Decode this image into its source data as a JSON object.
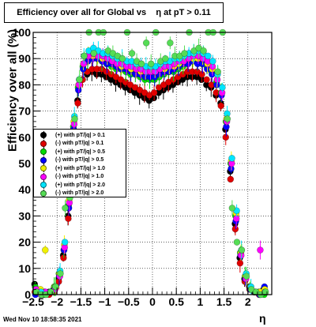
{
  "title": "Efficiency over all for Global vs    η at pT > 0.11",
  "footer_date": "Wed Nov 10 18:58:35 2021",
  "chart_data": {
    "type": "scatter",
    "title": "Efficiency over all for Global vs    η at pT > 0.11",
    "xlabel": "η",
    "ylabel": "Efficiency over all (%)",
    "xlim": [
      -2.5,
      2.5
    ],
    "ylim": [
      0,
      100
    ],
    "x_ticks": [
      "-2.5",
      "-2",
      "-1.5",
      "-1",
      "-0.5",
      "0",
      "0.5",
      "1",
      "1.5",
      "2"
    ],
    "y_ticks": [
      "0",
      "10",
      "20",
      "30",
      "40",
      "50",
      "60",
      "70",
      "80",
      "90",
      "100"
    ],
    "grid": true,
    "legend_position": "left-middle",
    "x": [
      -2.45,
      -2.35,
      -2.25,
      -2.15,
      -2.05,
      -1.95,
      -1.85,
      -1.75,
      -1.65,
      -1.55,
      -1.45,
      -1.35,
      -1.25,
      -1.15,
      -1.05,
      -0.95,
      -0.85,
      -0.75,
      -0.65,
      -0.55,
      -0.45,
      -0.35,
      -0.25,
      -0.15,
      -0.05,
      0.05,
      0.15,
      0.25,
      0.35,
      0.45,
      0.55,
      0.65,
      0.75,
      0.85,
      0.95,
      1.05,
      1.15,
      1.25,
      1.35,
      1.45,
      1.55,
      1.65,
      1.75,
      1.85,
      1.95,
      2.05,
      2.15,
      2.25,
      2.35
    ],
    "series": [
      {
        "name": "(+) with pT/|q| > 0.1",
        "color": "#000000",
        "values": [
          4,
          1,
          0,
          1,
          2,
          6,
          15,
          30,
          60,
          74,
          82,
          84,
          85,
          84,
          84,
          83,
          82,
          81,
          80,
          79,
          78,
          77,
          76,
          75,
          74,
          75,
          77,
          78,
          79,
          80,
          81,
          82,
          83,
          83,
          83,
          82,
          80,
          79,
          76,
          73,
          63,
          47,
          27,
          14,
          6,
          3,
          1,
          1,
          2
        ]
      },
      {
        "name": "(-) with pT/|q| > 0.1",
        "color": "#e00000",
        "values": [
          1,
          1,
          1,
          0,
          1,
          5,
          14,
          29,
          59,
          73,
          82,
          85,
          86,
          86,
          86,
          85,
          84,
          83,
          82,
          81,
          80,
          79,
          78,
          77,
          76,
          77,
          79,
          80,
          81,
          82,
          83,
          84,
          85,
          85,
          85,
          84,
          82,
          80,
          77,
          72,
          60,
          44,
          25,
          12,
          5,
          2,
          1,
          0,
          1
        ]
      },
      {
        "name": "(+) with pT/|q| > 0.5",
        "color": "#00dd00",
        "values": [
          3,
          1,
          0,
          1,
          3,
          8,
          17,
          34,
          64,
          79,
          87,
          89,
          90,
          90,
          89,
          88,
          87,
          86,
          86,
          85,
          84,
          84,
          83,
          82,
          82,
          82,
          83,
          84,
          85,
          85,
          86,
          87,
          88,
          89,
          89,
          88,
          87,
          85,
          81,
          77,
          66,
          50,
          30,
          16,
          7,
          3,
          1,
          1,
          0
        ]
      },
      {
        "name": "(-) with pT/|q| > 0.5",
        "color": "#0000ff",
        "values": [
          0,
          1,
          1,
          1,
          2,
          7,
          17,
          33,
          63,
          78,
          86,
          89,
          90,
          90,
          89,
          88,
          88,
          87,
          86,
          86,
          85,
          84,
          84,
          83,
          83,
          83,
          84,
          85,
          85,
          86,
          87,
          88,
          88,
          89,
          88,
          88,
          86,
          84,
          80,
          76,
          64,
          48,
          28,
          15,
          6,
          2,
          1,
          0,
          3
        ]
      },
      {
        "name": "(+) with pT/|q| > 1.0",
        "color": "#f0f000",
        "values": [
          1,
          2,
          17,
          1,
          3,
          8,
          19,
          36,
          66,
          80,
          88,
          91,
          91,
          91,
          90,
          90,
          89,
          88,
          87,
          87,
          86,
          86,
          85,
          85,
          85,
          85,
          86,
          86,
          87,
          87,
          88,
          89,
          90,
          90,
          90,
          90,
          88,
          86,
          82,
          77,
          67,
          51,
          31,
          16,
          7,
          3,
          1,
          1,
          2
        ]
      },
      {
        "name": "(-) with pT/|q| > 1.0",
        "color": "#ff00ff",
        "values": [
          2,
          0,
          1,
          1,
          2,
          7,
          18,
          35,
          65,
          80,
          88,
          91,
          92,
          91,
          91,
          90,
          89,
          88,
          88,
          87,
          87,
          86,
          86,
          85,
          85,
          85,
          86,
          87,
          87,
          88,
          89,
          89,
          90,
          91,
          91,
          90,
          89,
          87,
          82,
          77,
          66,
          50,
          29,
          15,
          6,
          3,
          1,
          17,
          1
        ]
      },
      {
        "name": "(+) with pT/|q| > 2.0",
        "color": "#00e5ff",
        "values": [
          1,
          1,
          0,
          1,
          3,
          9,
          20,
          38,
          68,
          82,
          91,
          93,
          94,
          93,
          92,
          92,
          91,
          90,
          90,
          89,
          89,
          88,
          88,
          87,
          87,
          87,
          88,
          89,
          89,
          90,
          90,
          91,
          92,
          92,
          93,
          92,
          91,
          89,
          84,
          79,
          69,
          52,
          32,
          17,
          8,
          3,
          1,
          0,
          1
        ]
      },
      {
        "name": "(-) with pT/|q| > 2.0",
        "color": "#55dd55",
        "values": [
          1,
          0,
          0,
          1,
          3,
          8,
          33,
          37,
          67,
          82,
          91,
          100,
          92,
          100,
          100,
          93,
          92,
          91,
          90,
          100,
          92,
          89,
          88,
          96,
          88,
          100,
          89,
          90,
          96,
          91,
          91,
          92,
          100,
          93,
          94,
          93,
          100,
          100,
          85,
          100,
          67,
          33,
          20,
          17,
          7,
          2,
          1,
          0,
          1
        ]
      }
    ]
  }
}
